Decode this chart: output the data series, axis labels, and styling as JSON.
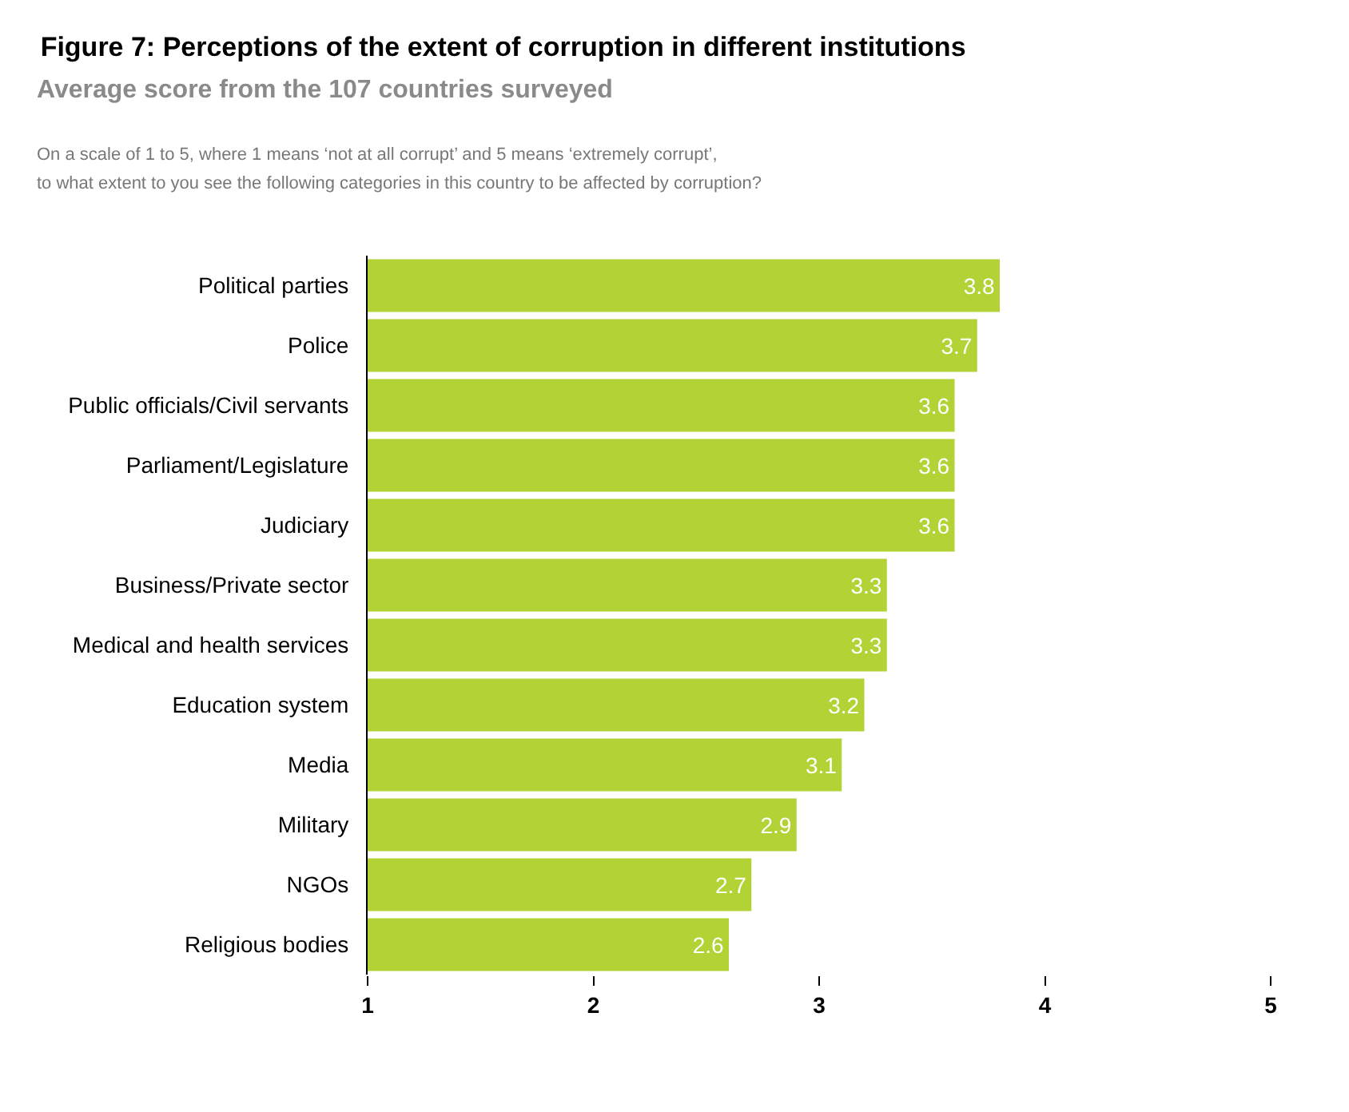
{
  "chart_data": {
    "type": "bar",
    "orientation": "horizontal",
    "title": "Figure 7: Perceptions of the extent of corruption in different institutions",
    "subtitle": "Average score from the 107 countries surveyed",
    "annotations": [
      "On a scale of 1 to 5, where 1 means ‘not at all corrupt’ and 5 means ‘extremely corrupt’,",
      "to what extent to you see the following categories in this country to be affected by corruption?"
    ],
    "categories": [
      "Political parties",
      "Police",
      "Public officials/Civil servants",
      "Parliament/Legislature",
      "Judiciary",
      "Business/Private sector",
      "Medical and health services",
      "Education system",
      "Media",
      "Military",
      "NGOs",
      "Religious bodies"
    ],
    "values": [
      3.8,
      3.7,
      3.6,
      3.6,
      3.6,
      3.3,
      3.3,
      3.2,
      3.1,
      2.9,
      2.7,
      2.6
    ],
    "color": "#b2d235",
    "xlim": [
      1,
      5
    ],
    "xticks": [
      1,
      2,
      3,
      4,
      5
    ],
    "grid": false,
    "data_labels": true
  }
}
